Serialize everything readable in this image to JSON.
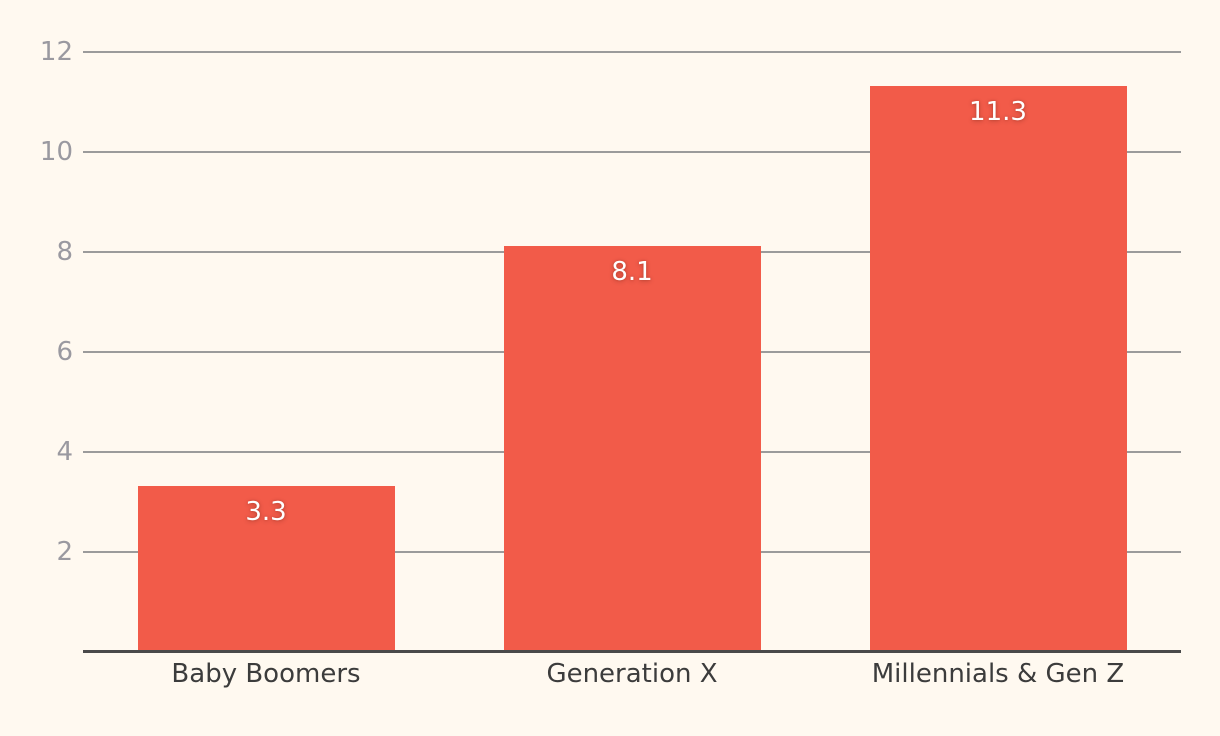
{
  "chart_data": {
    "type": "bar",
    "title": "",
    "categories": [
      "Baby Boomers",
      "Generation X",
      "Millennials & Gen Z"
    ],
    "values": [
      3.3,
      8.1,
      11.3
    ],
    "value_labels": [
      "3.3",
      "8.1",
      "11.3"
    ],
    "y_ticks": [
      2,
      4,
      6,
      8,
      10,
      12
    ],
    "y_tick_labels": [
      "2",
      "4",
      "6",
      "8",
      "10",
      "12"
    ],
    "ylim": [
      0,
      12
    ],
    "xlabel": "",
    "ylabel": "",
    "grid": "horizontal",
    "legend": "none",
    "bar_value_labels_position": "inside-top"
  },
  "colors": {
    "background": "#FFF9F0",
    "bar": "#F25B49",
    "gridline": "#9B9B9B",
    "axis_line": "#4A4A4A",
    "tick_label": "#9A99A0",
    "category_label": "#3C3C3C",
    "value_label": "#FFFFFF"
  }
}
